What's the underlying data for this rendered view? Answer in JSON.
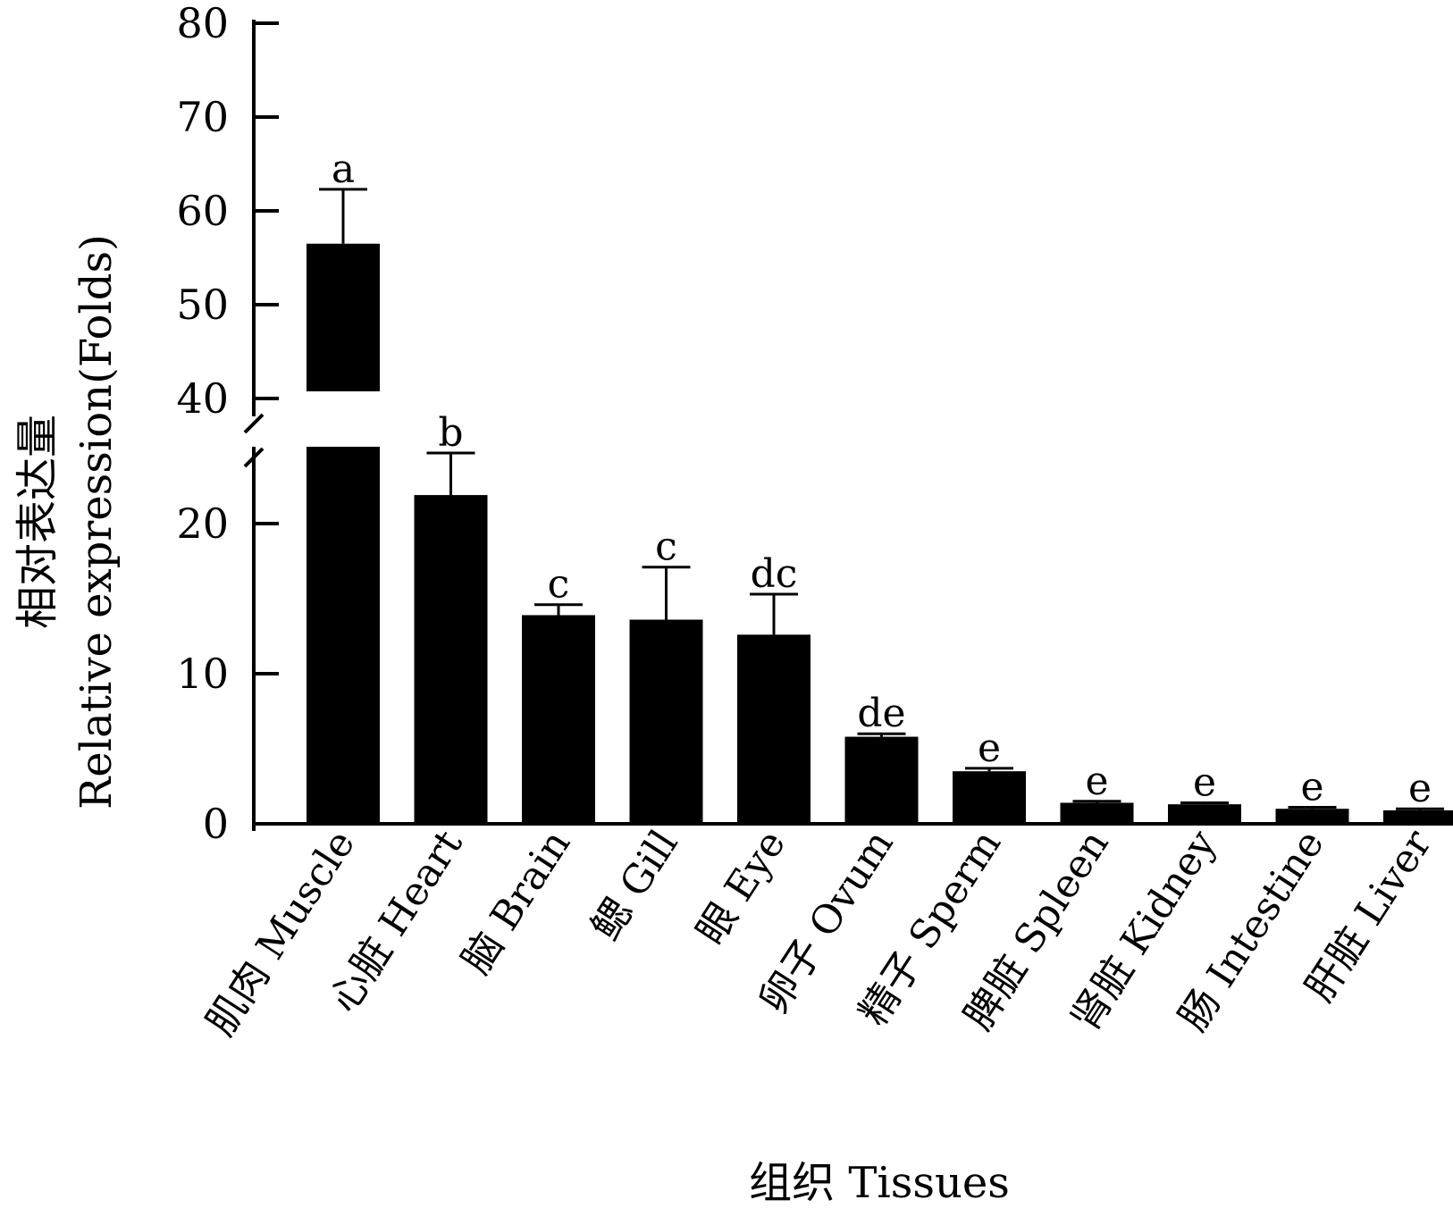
{
  "chart_data": {
    "type": "bar",
    "categories": [
      "肌肉 Muscle",
      "心脏 Heart",
      "脑 Brain",
      "鳃 Gill",
      "眼 Eye",
      "卵子 Ovum",
      "精子 Sperm",
      "脾脏 Spleen",
      "肾脏 Kidney",
      "肠 Intestine",
      "肝脏 Liver"
    ],
    "values": [
      56.5,
      21.9,
      13.9,
      13.6,
      12.6,
      5.8,
      3.5,
      1.4,
      1.3,
      1.0,
      0.9
    ],
    "error": [
      5.8,
      2.8,
      0.7,
      3.5,
      2.7,
      0.2,
      0.2,
      0.1,
      0.1,
      0.1,
      0.1
    ],
    "significance": [
      "a",
      "b",
      "c",
      "c",
      "dc",
      "de",
      "e",
      "e",
      "e",
      "e",
      "e"
    ],
    "xlabel": "组织 Tissues",
    "ylabel_cn": "相对表达量",
    "ylabel_en": "Relative expression(Folds)",
    "y_broken_axis": true,
    "ylim_lower": [
      0,
      25
    ],
    "ylim_upper": [
      40,
      80
    ],
    "yticks_lower": [
      0,
      10,
      20
    ],
    "ytick_labels_lower": [
      "0",
      "10",
      "20"
    ],
    "yticks_upper": [
      40,
      50,
      60,
      70,
      80
    ],
    "ytick_labels_upper": [
      "40",
      "50",
      "60",
      "70",
      "80"
    ],
    "bar_color": "#000000",
    "grid": false,
    "legend": "none"
  }
}
